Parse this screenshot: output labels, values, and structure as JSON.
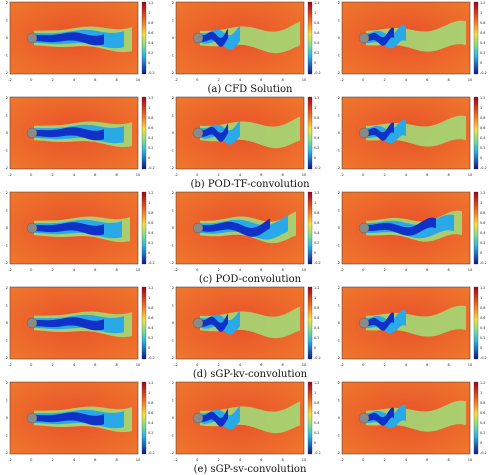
{
  "figure": {
    "rows": [
      {
        "caption": "(a) CFD Solution",
        "panels": [
          {
            "colorbar_ticks": [
              "1.2",
              "1",
              "0.8",
              "0.6",
              "0.4",
              "0.2",
              "0",
              "-0.2"
            ],
            "x_ticks": [
              "-2",
              "0",
              "2",
              "4",
              "6",
              "8",
              "10"
            ],
            "y_ticks": [
              "2",
              "1",
              "0",
              "-1",
              "-2"
            ]
          },
          {
            "colorbar_ticks": [
              "1.2",
              "1",
              "0.8",
              "0.6",
              "0.4",
              "0.2",
              "0",
              "-0.2"
            ],
            "x_ticks": [
              "-2",
              "0",
              "2",
              "4",
              "6",
              "8",
              "10"
            ],
            "y_ticks": [
              "2",
              "1",
              "0",
              "-1",
              "-2"
            ]
          },
          {
            "colorbar_ticks": [
              "1.2",
              "1",
              "0.8",
              "0.6",
              "0.4",
              "0.2",
              "0",
              "-0.2"
            ],
            "x_ticks": [
              "-2",
              "0",
              "2",
              "4",
              "6",
              "8",
              "10"
            ],
            "y_ticks": [
              "2",
              "1",
              "0",
              "-1",
              "-2"
            ]
          }
        ]
      },
      {
        "caption": "(b) POD-TF-convolution",
        "panels": [
          {
            "colorbar_ticks": [
              "1.2",
              "1",
              "0.8",
              "0.6",
              "0.4",
              "0.2",
              "0",
              "-0.2"
            ],
            "x_ticks": [
              "-2",
              "0",
              "2",
              "4",
              "6",
              "8",
              "10"
            ],
            "y_ticks": [
              "2",
              "1",
              "0",
              "-1",
              "-2"
            ]
          },
          {
            "colorbar_ticks": [
              "1.2",
              "1",
              "0.8",
              "0.6",
              "0.4",
              "0.2",
              "0",
              "-0.2"
            ],
            "x_ticks": [
              "-2",
              "0",
              "2",
              "4",
              "6",
              "8",
              "10"
            ],
            "y_ticks": [
              "2",
              "1",
              "0",
              "-1",
              "-2"
            ]
          },
          {
            "colorbar_ticks": [
              "1.2",
              "1",
              "0.8",
              "0.6",
              "0.4",
              "0.2",
              "0",
              "-0.2"
            ],
            "x_ticks": [
              "-2",
              "0",
              "2",
              "4",
              "6",
              "8",
              "10"
            ],
            "y_ticks": [
              "2",
              "1",
              "0",
              "-1",
              "-2"
            ]
          }
        ]
      },
      {
        "caption": "(c) POD-convolution",
        "panels": [
          {
            "colorbar_ticks": [
              "1.2",
              "1",
              "0.8",
              "0.6",
              "0.4",
              "0.2",
              "0",
              "-0.2"
            ],
            "x_ticks": [
              "-2",
              "0",
              "2",
              "4",
              "6",
              "8",
              "10"
            ],
            "y_ticks": [
              "2",
              "1",
              "0",
              "-1",
              "-2"
            ]
          },
          {
            "colorbar_ticks": [
              "1.2",
              "1",
              "0.8",
              "0.6",
              "0.4",
              "0.2",
              "0",
              "-0.2"
            ],
            "x_ticks": [
              "-2",
              "0",
              "2",
              "4",
              "6",
              "8",
              "10"
            ],
            "y_ticks": [
              "2",
              "1",
              "0",
              "-1",
              "-2"
            ]
          },
          {
            "colorbar_ticks": [
              "1.2",
              "1",
              "0.8",
              "0.6",
              "0.4",
              "0.2",
              "0",
              "-0.2"
            ],
            "x_ticks": [
              "-2",
              "0",
              "2",
              "4",
              "6",
              "8",
              "10"
            ],
            "y_ticks": [
              "2",
              "1",
              "0",
              "-1",
              "-2"
            ]
          }
        ]
      },
      {
        "caption": "(d) sGP-kv-convolution",
        "panels": [
          {
            "colorbar_ticks": [
              "1.2",
              "1",
              "0.8",
              "0.6",
              "0.4",
              "0.2",
              "0",
              "-0.2"
            ],
            "x_ticks": [
              "-2",
              "0",
              "2",
              "4",
              "6",
              "8",
              "10"
            ],
            "y_ticks": [
              "2",
              "1",
              "0",
              "-1",
              "-2"
            ]
          },
          {
            "colorbar_ticks": [
              "1.2",
              "1",
              "0.8",
              "0.6",
              "0.4",
              "0.2",
              "0",
              "-0.2"
            ],
            "x_ticks": [
              "-2",
              "0",
              "2",
              "4",
              "6",
              "8",
              "10"
            ],
            "y_ticks": [
              "2",
              "1",
              "0",
              "-1",
              "-2"
            ]
          },
          {
            "colorbar_ticks": [
              "1.2",
              "1",
              "0.8",
              "0.6",
              "0.4",
              "0.2",
              "0",
              "-0.2"
            ],
            "x_ticks": [
              "-2",
              "0",
              "2",
              "4",
              "6",
              "8",
              "10"
            ],
            "y_ticks": [
              "2",
              "1",
              "0",
              "-1",
              "-2"
            ]
          }
        ]
      },
      {
        "caption": "(e) sGP-sv-convolution",
        "panels": [
          {
            "colorbar_ticks": [
              "1.2",
              "1",
              "0.8",
              "0.6",
              "0.4",
              "0.2",
              "0",
              "-0.2"
            ],
            "x_ticks": [
              "-2",
              "0",
              "2",
              "4",
              "6",
              "8",
              "10"
            ],
            "y_ticks": [
              "2",
              "1",
              "0",
              "-1",
              "-2"
            ]
          },
          {
            "colorbar_ticks": [
              "1.2",
              "1",
              "0.8",
              "0.6",
              "0.4",
              "0.2",
              "0",
              "-0.2"
            ],
            "x_ticks": [
              "-2",
              "0",
              "2",
              "4",
              "6",
              "8",
              "10"
            ],
            "y_ticks": [
              "2",
              "1",
              "0",
              "-1",
              "-2"
            ]
          },
          {
            "colorbar_ticks": [
              "1.2",
              "1",
              "0.8",
              "0.6",
              "0.4",
              "0.2",
              "0",
              "-0.2"
            ],
            "x_ticks": [
              "-2",
              "0",
              "2",
              "4",
              "6",
              "8",
              "10"
            ],
            "y_ticks": [
              "2",
              "1",
              "0",
              "-1",
              "-2"
            ]
          }
        ]
      }
    ],
    "colors": {
      "background_field": "#e8502a",
      "far_field": "#f07a2c",
      "wake_core": "#1030c8",
      "wake_mid": "#29a9e8",
      "wake_outer": "#9fe07a",
      "cylinder": "#8a8a8a"
    }
  }
}
